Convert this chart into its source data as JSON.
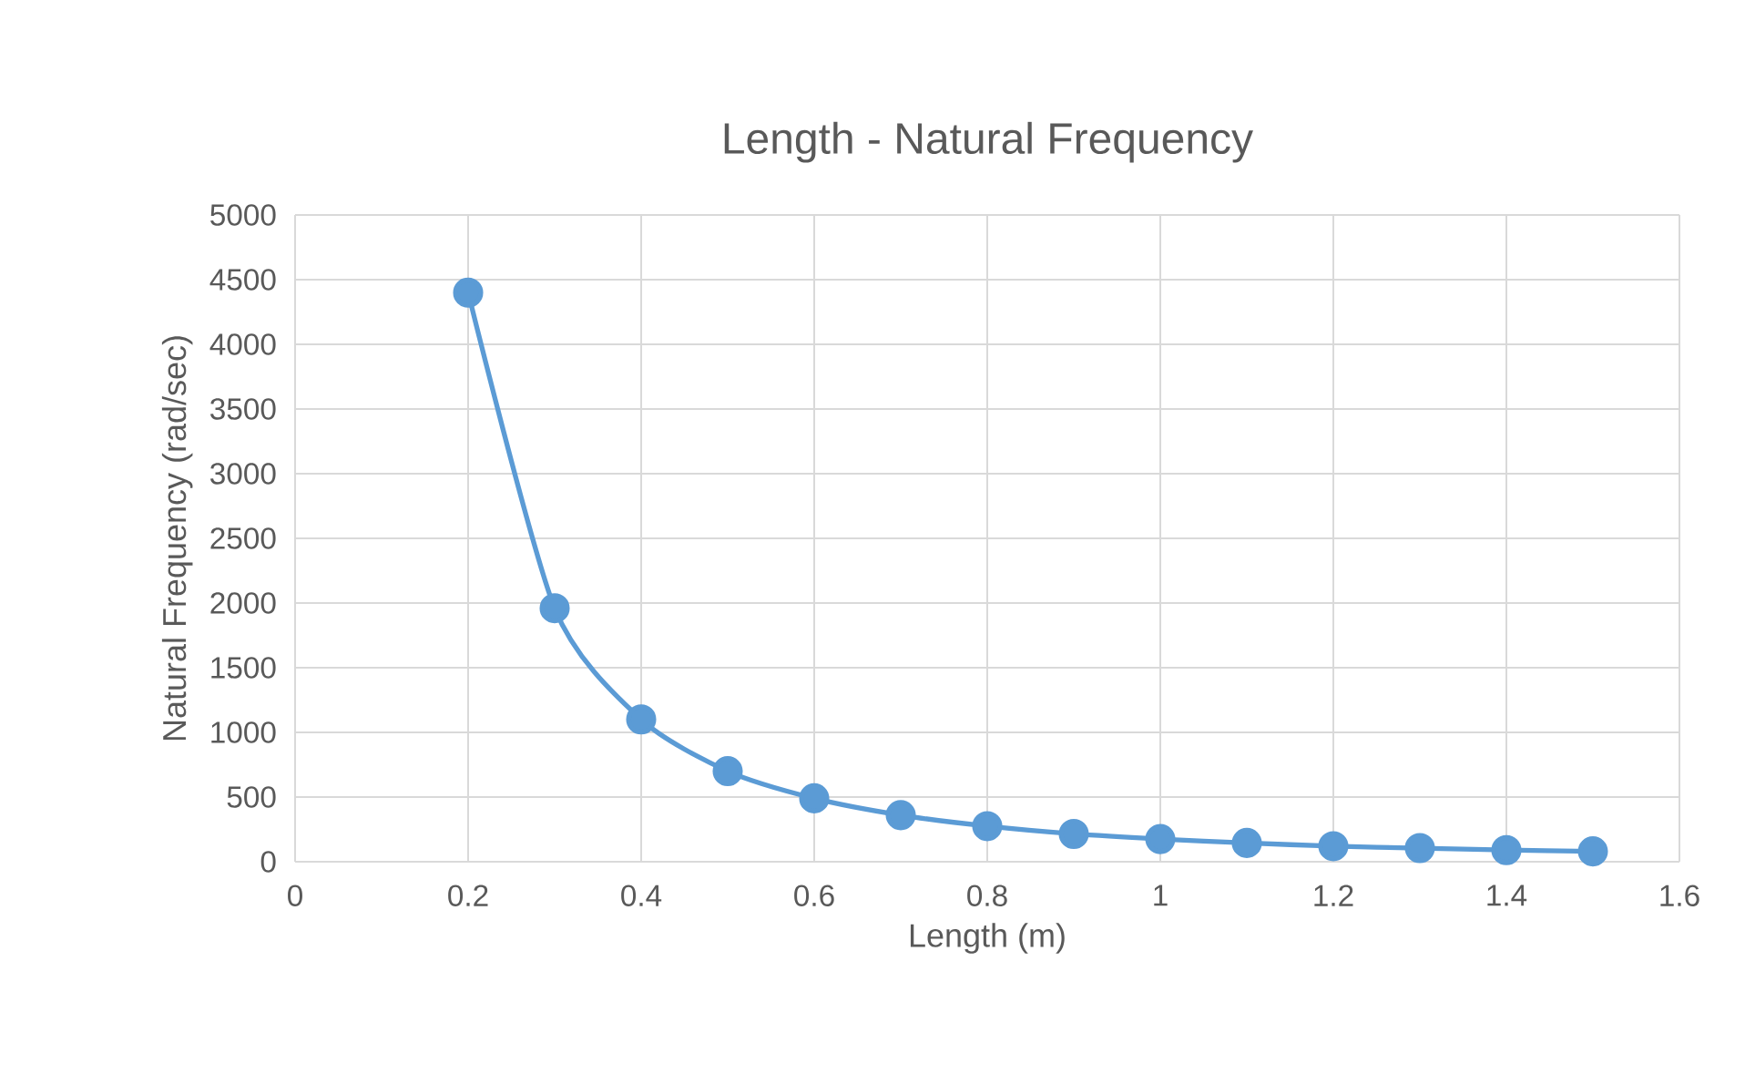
{
  "chart_data": {
    "type": "line",
    "title": "Length - Natural Frequency",
    "xlabel": "Length (m)",
    "ylabel": "Natural Frequency (rad/sec)",
    "x": [
      0.2,
      0.3,
      0.4,
      0.5,
      0.6,
      0.7,
      0.8,
      0.9,
      1,
      1.1,
      1.2,
      1.3,
      1.4,
      1.5
    ],
    "series": [
      {
        "color": "#5b9bd5",
        "values": [
          4400,
          1960,
          1100,
          700,
          490,
          360,
          275,
          215,
          175,
          145,
          120,
          105,
          90,
          80
        ]
      }
    ],
    "xlim": [
      0,
      1.6
    ],
    "ylim": [
      0,
      5000
    ],
    "xticks": [
      0,
      0.2,
      0.4,
      0.6,
      0.8,
      1,
      1.2,
      1.4,
      1.6
    ],
    "yticks": [
      0,
      500,
      1000,
      1500,
      2000,
      2500,
      3000,
      3500,
      4000,
      4500,
      5000
    ],
    "grid": true,
    "marker": "circle",
    "line_style": "solid",
    "legend": false
  }
}
